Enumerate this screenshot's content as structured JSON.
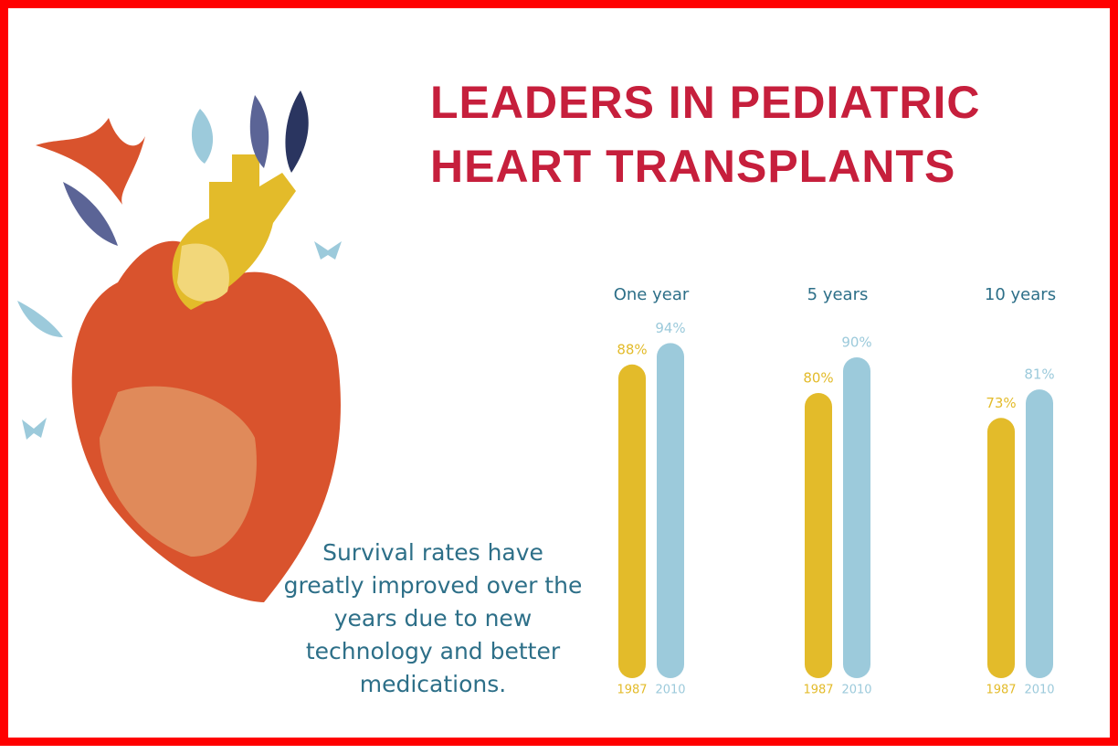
{
  "chart_data": {
    "type": "bar",
    "title": "LEADERS IN PEDIATRIC HEART TRANSPLANTS",
    "annotation": "Survival rates have greatly improved over the years due to new technology and better medications.",
    "categories": [
      "One year",
      "5 years",
      "10 years"
    ],
    "series": [
      {
        "name": "1987",
        "color": "#e3bb2a",
        "values": [
          88,
          80,
          73
        ],
        "value_labels": [
          "88%",
          "80%",
          "73%"
        ]
      },
      {
        "name": "2010",
        "color": "#9ccadb",
        "values": [
          94,
          90,
          81
        ],
        "value_labels": [
          "94%",
          "90%",
          "81%"
        ]
      }
    ]
  }
}
